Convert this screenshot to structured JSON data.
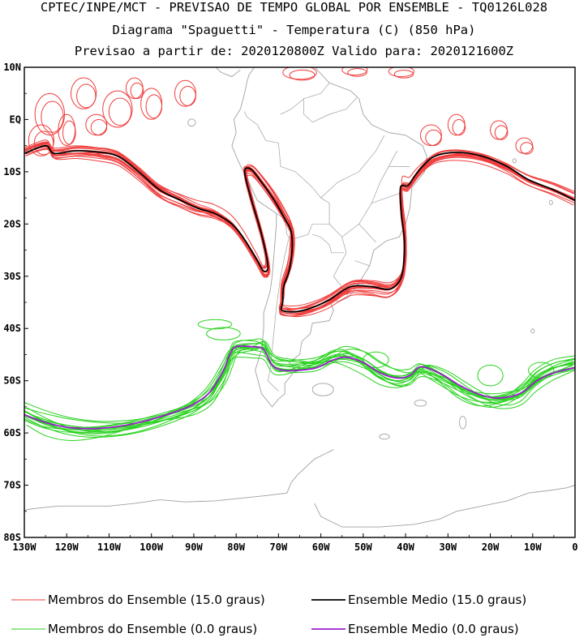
{
  "title": {
    "line1": "CPTEC/INPE/MCT - PREVISAO DE TEMPO GLOBAL POR ENSEMBLE - TQ0126L028",
    "line2": "Diagrama \"Spaguetti\" - Temperatura (C) (850 hPa)",
    "line3": "Previsao a partir de: 2020120800Z  Valido para: 2020121600Z"
  },
  "axes": {
    "lat_labels": [
      "10N",
      "EQ",
      "10S",
      "20S",
      "30S",
      "40S",
      "50S",
      "60S",
      "70S",
      "80S"
    ],
    "lat_values": [
      10,
      0,
      -10,
      -20,
      -30,
      -40,
      -50,
      -60,
      -70,
      -80
    ],
    "lon_labels": [
      "130W",
      "120W",
      "110W",
      "100W",
      "90W",
      "80W",
      "70W",
      "60W",
      "50W",
      "40W",
      "30W",
      "20W",
      "10W",
      "0"
    ],
    "lon_values": [
      -130,
      -120,
      -110,
      -100,
      -90,
      -80,
      -70,
      -60,
      -50,
      -40,
      -30,
      -20,
      -10,
      0
    ],
    "lat_range": [
      -80,
      10
    ],
    "lon_range": [
      -130,
      0
    ]
  },
  "legend": {
    "items": [
      {
        "label": "Membros do Ensemble (15.0 graus)",
        "color": "#f03c3c"
      },
      {
        "label": "Ensemble Medio (15.0 graus)",
        "color": "#000000"
      },
      {
        "label": "Membros do Ensemble (0.0 graus)",
        "color": "#28d21e"
      },
      {
        "label": "Ensemble Medio (0.0 graus)",
        "color": "#9b1ecd"
      }
    ]
  },
  "colors": {
    "member_15": "#f03c3c",
    "mean_15": "#000000",
    "member_0": "#28d21e",
    "mean_0": "#9b1ecd",
    "coast": "#a0a0a0"
  },
  "isolines": {
    "mean_15": [
      [
        [
          -130,
          -6.5
        ],
        [
          -125,
          -5
        ],
        [
          -123,
          -6.5
        ],
        [
          -118,
          -6
        ],
        [
          -113,
          -6.2
        ],
        [
          -108,
          -7
        ],
        [
          -103,
          -10
        ],
        [
          -98,
          -13.5
        ],
        [
          -93,
          -15.5
        ],
        [
          -89,
          -17
        ],
        [
          -85,
          -18
        ],
        [
          -81,
          -20
        ],
        [
          -78,
          -23
        ],
        [
          -75,
          -27
        ],
        [
          -73.5,
          -29
        ],
        [
          -72.5,
          -28
        ],
        [
          -74,
          -22
        ],
        [
          -76.5,
          -15
        ],
        [
          -78,
          -10
        ],
        [
          -76.5,
          -9.5
        ],
        [
          -74,
          -12
        ],
        [
          -71,
          -15.5
        ],
        [
          -68.5,
          -19
        ],
        [
          -67,
          -21.5
        ],
        [
          -66.8,
          -25
        ],
        [
          -67.5,
          -29
        ],
        [
          -68.8,
          -32
        ],
        [
          -69,
          -35
        ],
        [
          -69.2,
          -36.5
        ],
        [
          -66,
          -36.8
        ],
        [
          -62,
          -36
        ],
        [
          -58,
          -34.5
        ],
        [
          -53,
          -32
        ],
        [
          -48,
          -32
        ],
        [
          -44,
          -32.5
        ],
        [
          -41.5,
          -31
        ],
        [
          -40.5,
          -28
        ],
        [
          -40.3,
          -23
        ],
        [
          -41,
          -18
        ],
        [
          -41.2,
          -13
        ],
        [
          -39.5,
          -12.7
        ],
        [
          -38,
          -11
        ],
        [
          -36,
          -9
        ],
        [
          -33,
          -7
        ],
        [
          -28,
          -6.3
        ],
        [
          -22,
          -7
        ],
        [
          -16,
          -9
        ],
        [
          -11,
          -11.5
        ],
        [
          -5,
          -13.5
        ],
        [
          0,
          -15.5
        ]
      ]
    ],
    "mean_0": [
      [
        [
          -130,
          -56.5
        ],
        [
          -125,
          -58
        ],
        [
          -119,
          -59
        ],
        [
          -112,
          -59.1
        ],
        [
          -104,
          -58.2
        ],
        [
          -96,
          -56.4
        ],
        [
          -90,
          -54.5
        ],
        [
          -86,
          -52
        ],
        [
          -83,
          -48
        ],
        [
          -81.5,
          -45
        ],
        [
          -80,
          -43.5
        ],
        [
          -76,
          -43.5
        ],
        [
          -73.5,
          -44
        ],
        [
          -71.5,
          -47
        ],
        [
          -69,
          -48
        ],
        [
          -65,
          -48
        ],
        [
          -61,
          -47.5
        ],
        [
          -57,
          -46
        ],
        [
          -54,
          -45.5
        ],
        [
          -50,
          -46.5
        ],
        [
          -46,
          -48.5
        ],
        [
          -42,
          -49.5
        ],
        [
          -39,
          -49
        ],
        [
          -37,
          -47.5
        ],
        [
          -35,
          -47.5
        ],
        [
          -31,
          -49
        ],
        [
          -27,
          -51
        ],
        [
          -23,
          -52.5
        ],
        [
          -19,
          -53.3
        ],
        [
          -15,
          -53
        ],
        [
          -12,
          -52
        ],
        [
          -9,
          -50
        ],
        [
          -5,
          -48.5
        ],
        [
          0,
          -47.5
        ]
      ]
    ]
  }
}
